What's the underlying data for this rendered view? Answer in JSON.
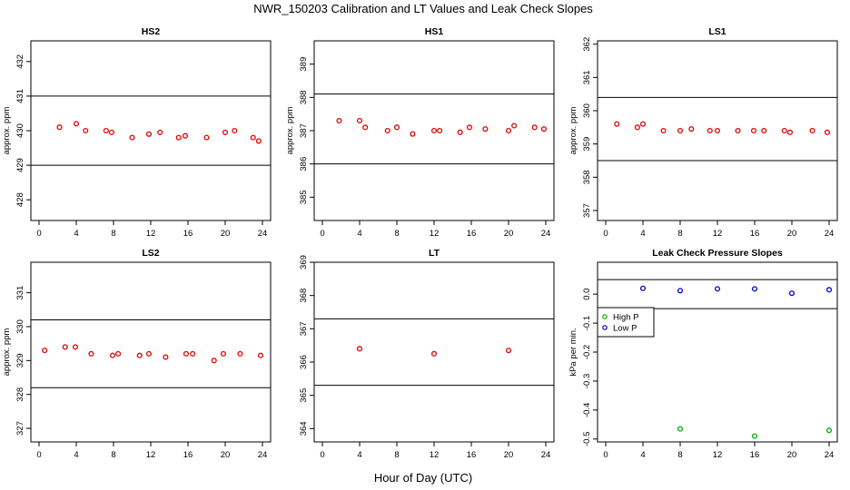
{
  "title": "NWR_150203  Calibration and LT Values and Leak Check Slopes",
  "xlabel": "Hour of Day (UTC)",
  "colors": {
    "red": "#dd0000",
    "green": "#00aa00",
    "blue": "#0000cc",
    "axis": "#000000"
  },
  "chart_data": [
    {
      "type": "scatter",
      "title": "HS2",
      "ylabel": "approx. ppm",
      "xlim": [
        0,
        24
      ],
      "ylim": [
        427.4,
        432.6
      ],
      "xticks": [
        0,
        4,
        8,
        12,
        16,
        20,
        24
      ],
      "yticks": [
        428,
        429,
        430,
        431,
        432
      ],
      "hlines": [
        431.0,
        429.0
      ],
      "series": [
        {
          "color": "#dd0000",
          "marker": "circle",
          "points": [
            [
              2.2,
              430.1
            ],
            [
              4.0,
              430.2
            ],
            [
              5.0,
              430.0
            ],
            [
              7.2,
              430.0
            ],
            [
              7.8,
              429.95
            ],
            [
              10.0,
              429.8
            ],
            [
              11.8,
              429.9
            ],
            [
              13.0,
              429.95
            ],
            [
              15.0,
              429.8
            ],
            [
              15.7,
              429.85
            ],
            [
              18.0,
              429.8
            ],
            [
              20.0,
              429.95
            ],
            [
              21.0,
              430.0
            ],
            [
              23.0,
              429.8
            ],
            [
              23.6,
              429.7
            ]
          ]
        }
      ]
    },
    {
      "type": "scatter",
      "title": "HS1",
      "ylabel": "approx. ppm",
      "xlim": [
        0,
        24
      ],
      "ylim": [
        384.3,
        389.7
      ],
      "xticks": [
        0,
        4,
        8,
        12,
        16,
        20,
        24
      ],
      "yticks": [
        385,
        386,
        387,
        388,
        389
      ],
      "hlines": [
        388.1,
        386.0
      ],
      "series": [
        {
          "color": "#dd0000",
          "marker": "circle",
          "points": [
            [
              1.8,
              387.3
            ],
            [
              4.0,
              387.3
            ],
            [
              4.6,
              387.1
            ],
            [
              7.0,
              387.0
            ],
            [
              8.0,
              387.1
            ],
            [
              9.7,
              386.9
            ],
            [
              12.0,
              387.0
            ],
            [
              12.6,
              387.0
            ],
            [
              14.8,
              386.95
            ],
            [
              15.8,
              387.1
            ],
            [
              17.5,
              387.05
            ],
            [
              20.0,
              387.0
            ],
            [
              20.6,
              387.15
            ],
            [
              22.8,
              387.1
            ],
            [
              23.8,
              387.05
            ]
          ]
        }
      ]
    },
    {
      "type": "scatter",
      "title": "LS1",
      "ylabel": "approx. ppm",
      "xlim": [
        0,
        24
      ],
      "ylim": [
        356.7,
        362.1
      ],
      "xticks": [
        0,
        4,
        8,
        12,
        16,
        20,
        24
      ],
      "yticks": [
        357,
        358,
        359,
        360,
        361,
        362
      ],
      "hlines": [
        360.4,
        358.5
      ],
      "series": [
        {
          "color": "#dd0000",
          "marker": "circle",
          "points": [
            [
              1.2,
              359.6
            ],
            [
              3.4,
              359.5
            ],
            [
              4.0,
              359.6
            ],
            [
              6.2,
              359.4
            ],
            [
              8.0,
              359.4
            ],
            [
              9.2,
              359.45
            ],
            [
              11.2,
              359.4
            ],
            [
              12.0,
              359.4
            ],
            [
              14.2,
              359.4
            ],
            [
              15.9,
              359.4
            ],
            [
              17.0,
              359.4
            ],
            [
              19.2,
              359.4
            ],
            [
              19.8,
              359.35
            ],
            [
              22.2,
              359.4
            ],
            [
              23.8,
              359.35
            ]
          ]
        }
      ]
    },
    {
      "type": "scatter",
      "title": "LS2",
      "ylabel": "approx. ppm",
      "xlim": [
        0,
        24
      ],
      "ylim": [
        326.6,
        331.9
      ],
      "xticks": [
        0,
        4,
        8,
        12,
        16,
        20,
        24
      ],
      "yticks": [
        327,
        328,
        329,
        330,
        331
      ],
      "hlines": [
        330.2,
        328.2
      ],
      "series": [
        {
          "color": "#dd0000",
          "marker": "circle",
          "points": [
            [
              0.6,
              329.3
            ],
            [
              2.8,
              329.4
            ],
            [
              3.9,
              329.4
            ],
            [
              5.6,
              329.2
            ],
            [
              7.9,
              329.15
            ],
            [
              8.5,
              329.2
            ],
            [
              10.8,
              329.15
            ],
            [
              11.8,
              329.2
            ],
            [
              13.6,
              329.1
            ],
            [
              15.8,
              329.2
            ],
            [
              16.5,
              329.2
            ],
            [
              18.8,
              329.0
            ],
            [
              19.8,
              329.2
            ],
            [
              21.6,
              329.2
            ],
            [
              23.8,
              329.15
            ]
          ]
        }
      ]
    },
    {
      "type": "scatter",
      "title": "LT",
      "ylabel": "",
      "xlim": [
        0,
        24
      ],
      "ylim": [
        363.6,
        369.0
      ],
      "xticks": [
        0,
        4,
        8,
        12,
        16,
        20,
        24
      ],
      "yticks": [
        364,
        365,
        366,
        367,
        368,
        369
      ],
      "hlines": [
        367.3,
        365.3
      ],
      "series": [
        {
          "color": "#dd0000",
          "marker": "circle",
          "points": [
            [
              4.0,
              366.4
            ],
            [
              12.0,
              366.25
            ],
            [
              20.0,
              366.35
            ]
          ]
        }
      ]
    },
    {
      "type": "scatter",
      "title": "Leak Check Pressure Slopes",
      "ylabel": "kPa per min.",
      "xlim": [
        0,
        24
      ],
      "ylim": [
        -0.51,
        0.11
      ],
      "xticks": [
        0,
        4,
        8,
        12,
        16,
        20,
        24
      ],
      "yticks": [
        0.0,
        -0.1,
        -0.2,
        -0.3,
        -0.4,
        -0.5
      ],
      "ytick_labels": [
        "0.0",
        "-0.1",
        "-0.2",
        "-0.3",
        "-0.4",
        "-0.5"
      ],
      "hlines": [
        0.05,
        -0.05
      ],
      "legend": {
        "placement": "left",
        "entries": [
          {
            "label": "High P",
            "color": "#00aa00"
          },
          {
            "label": "Low P",
            "color": "#0000cc"
          }
        ]
      },
      "series": [
        {
          "name": "High P",
          "color": "#00aa00",
          "marker": "circle",
          "points": [
            [
              8.0,
              -0.465
            ],
            [
              16.0,
              -0.49
            ],
            [
              24.0,
              -0.47
            ]
          ]
        },
        {
          "name": "Low P",
          "color": "#0000cc",
          "marker": "circle",
          "points": [
            [
              4.0,
              0.02
            ],
            [
              8.0,
              0.012
            ],
            [
              12.0,
              0.018
            ],
            [
              16.0,
              0.018
            ],
            [
              20.0,
              0.003
            ],
            [
              24.0,
              0.015
            ]
          ]
        }
      ]
    }
  ]
}
